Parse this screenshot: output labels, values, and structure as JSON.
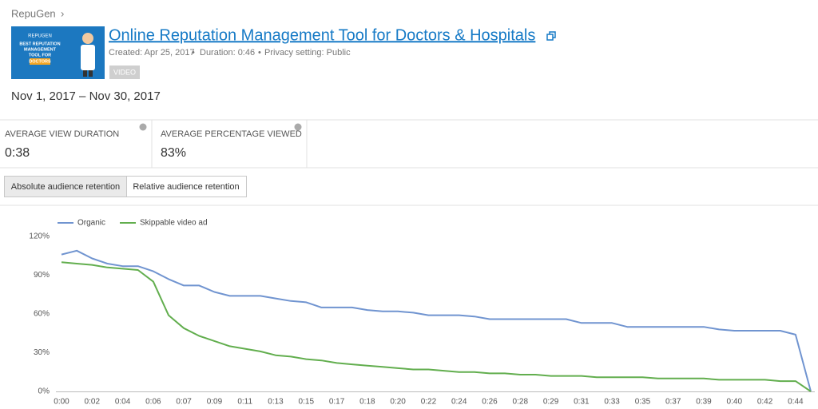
{
  "breadcrumb": "RepuGen",
  "thumbnail": {
    "brand": "REPUGEN",
    "lines": [
      "BEST REPUTATION",
      "MANAGEMENT",
      "TOOL FOR",
      "DOCTORS"
    ]
  },
  "video": {
    "title": "Online Reputation Management Tool for Doctors & Hospitals",
    "meta": [
      "Created: Apr 25, 2017",
      "Duration: 0:46",
      "Privacy setting: Public"
    ],
    "badge": "VIDEO"
  },
  "date_range": "Nov 1, 2017 – Nov 30, 2017",
  "metrics": [
    {
      "label": "AVERAGE VIEW DURATION",
      "value": "0:38"
    },
    {
      "label": "AVERAGE PERCENTAGE VIEWED",
      "value": "83%"
    }
  ],
  "tabs": [
    "Absolute audience retention",
    "Relative audience retention"
  ],
  "chart_data": {
    "type": "line",
    "categories": [
      "0:00",
      null,
      "0:02",
      null,
      "0:04",
      null,
      "0:06",
      null,
      "0:07",
      null,
      "0:09",
      null,
      "0:11",
      null,
      "0:13",
      null,
      "0:15",
      null,
      "0:17",
      null,
      "0:18",
      null,
      "0:20",
      null,
      "0:22",
      null,
      "0:24",
      null,
      "0:26",
      null,
      "0:28",
      null,
      "0:29",
      null,
      "0:31",
      null,
      "0:33",
      null,
      "0:35",
      null,
      "0:37",
      null,
      "0:39",
      null,
      "0:40",
      null,
      "0:42",
      null,
      "0:44",
      null
    ],
    "series": [
      {
        "name": "Organic",
        "color": "#7094d0",
        "values": [
          106,
          109,
          103,
          99,
          97,
          97,
          93,
          87,
          82,
          82,
          77,
          74,
          74,
          74,
          72,
          70,
          69,
          65,
          65,
          65,
          63,
          62,
          62,
          61,
          59,
          59,
          59,
          58,
          56,
          56,
          56,
          56,
          56,
          56,
          53,
          53,
          53,
          50,
          50,
          50,
          50,
          50,
          50,
          48,
          47,
          47,
          47,
          47,
          44,
          0
        ]
      },
      {
        "name": "Skippable video ad",
        "color": "#62ae4e",
        "values": [
          100,
          99,
          98,
          96,
          95,
          94,
          85,
          59,
          49,
          43,
          39,
          35,
          33,
          31,
          28,
          27,
          25,
          24,
          22,
          21,
          20,
          19,
          18,
          17,
          17,
          16,
          15,
          15,
          14,
          14,
          13,
          13,
          12,
          12,
          12,
          11,
          11,
          11,
          11,
          10,
          10,
          10,
          10,
          9,
          9,
          9,
          9,
          8,
          8,
          0
        ]
      }
    ],
    "ylim": [
      0,
      120
    ],
    "yticks": [
      {
        "value": 0,
        "label": "0%"
      },
      {
        "value": 30,
        "label": "30%"
      },
      {
        "value": 60,
        "label": "60%"
      },
      {
        "value": 90,
        "label": "90%"
      },
      {
        "value": 120,
        "label": "120%"
      }
    ],
    "grid": false,
    "legend": "top-left"
  }
}
